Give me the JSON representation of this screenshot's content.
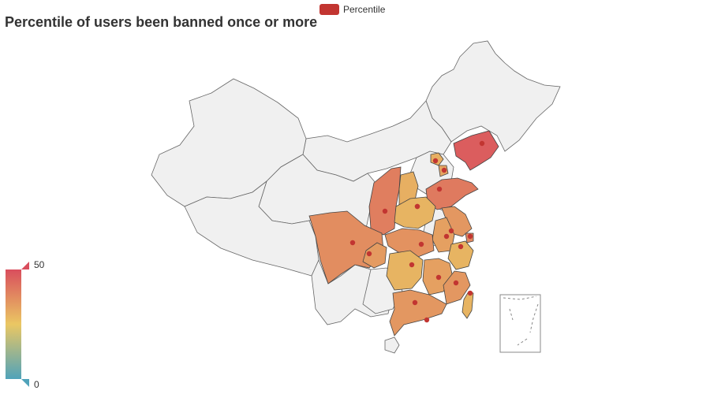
{
  "title": "Percentile of users been banned once or more",
  "legend": {
    "label": "Percentile",
    "color": "#c23531"
  },
  "visual_map": {
    "min": 0,
    "max": 50,
    "min_label": "0",
    "max_label": "50",
    "colors": [
      "#50a3ba",
      "#eac763",
      "#d94e5d"
    ]
  },
  "colors": {
    "inactive_region": "#f0f0f0",
    "region_border": "#444444",
    "marker": "#c23531"
  },
  "regions": [
    {
      "name": "Liaoning",
      "value": 47
    },
    {
      "name": "Beijing",
      "value": 30
    },
    {
      "name": "Tianjin",
      "value": 32
    },
    {
      "name": "Shandong",
      "value": 41
    },
    {
      "name": "Shaanxi",
      "value": 40
    },
    {
      "name": "Shanxi",
      "value": 30
    },
    {
      "name": "Henan",
      "value": 29
    },
    {
      "name": "Jiangsu",
      "value": 35
    },
    {
      "name": "Anhui",
      "value": 33
    },
    {
      "name": "Hubei",
      "value": 36
    },
    {
      "name": "Shanghai",
      "value": 38
    },
    {
      "name": "Sichuan",
      "value": 37
    },
    {
      "name": "Chongqing",
      "value": 34
    },
    {
      "name": "Zhejiang",
      "value": 29
    },
    {
      "name": "Hunan",
      "value": 29
    },
    {
      "name": "Jiangxi",
      "value": 33
    },
    {
      "name": "Fujian",
      "value": 35
    },
    {
      "name": "Guangdong",
      "value": 35
    },
    {
      "name": "Taiwan",
      "value": 29
    },
    {
      "name": "Hong Kong",
      "value": 35
    }
  ]
}
